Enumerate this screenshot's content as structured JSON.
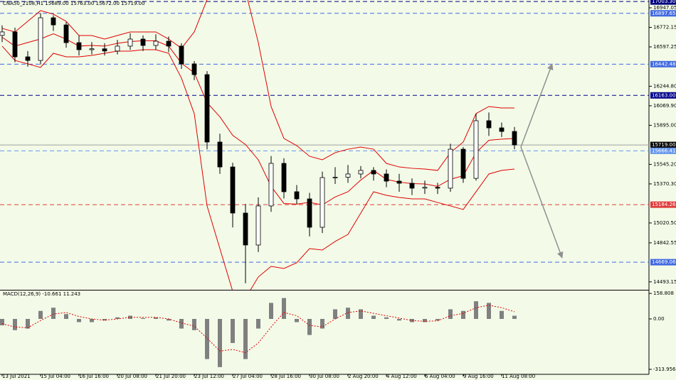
{
  "chart_data": {
    "type": "candlestick",
    "title": "CNA50_2108,H1 15689.00 15763.00 15672.00 15719.00",
    "categories": [
      "13 Jul 2021",
      null,
      null,
      "15 Jul 04:00",
      null,
      null,
      "16 Jul 16:00",
      null,
      null,
      "20 Jul 08:00",
      null,
      null,
      "21 Jul 20:00",
      null,
      null,
      "23 Jul 12:00",
      null,
      null,
      "27 Jul 04:00",
      null,
      null,
      "28 Jul 16:00",
      null,
      null,
      "30 Jul 08:00",
      null,
      null,
      "2 Aug 20:00",
      null,
      null,
      "4 Aug 12:00",
      null,
      null,
      "6 Aug 04:00",
      null,
      null,
      "9 Aug 16:00",
      null,
      null,
      "11 Aug 08:00",
      null
    ],
    "open": [
      16700,
      16731,
      16508,
      16476,
      16858,
      16794,
      16635,
      16572,
      16580,
      16560,
      16604,
      16667,
      16610,
      16648,
      16604,
      16445,
      16349,
      15745,
      15522,
      15109,
      14823,
      15173,
      15554,
      15300,
      15236,
      14982,
      15427,
      15430,
      15459,
      15491,
      15459,
      15395,
      15376,
      15332,
      15340,
      15332,
      15681,
      15420,
      15936,
      15872,
      15840
    ],
    "high": [
      16790,
      16770,
      16560,
      16900,
      16880,
      16820,
      16700,
      16640,
      16630,
      16660,
      16720,
      16700,
      16710,
      16690,
      16630,
      16470,
      16380,
      15820,
      15560,
      15190,
      15250,
      15620,
      15600,
      15360,
      15290,
      15480,
      15520,
      15540,
      15530,
      15520,
      15500,
      15460,
      15420,
      15400,
      15380,
      15730,
      15700,
      16000,
      16010,
      15920,
      15880
    ],
    "low": [
      16640,
      16460,
      16420,
      16440,
      16740,
      16590,
      16520,
      16530,
      16520,
      16530,
      16570,
      16560,
      16570,
      16550,
      16400,
      16300,
      15680,
      15460,
      14980,
      14480,
      14760,
      15120,
      15240,
      15190,
      14900,
      14930,
      15370,
      15380,
      15420,
      15400,
      15340,
      15300,
      15270,
      15280,
      15280,
      15300,
      15380,
      15400,
      15800,
      15790,
      15680
    ],
    "close": [
      16731,
      16508,
      16476,
      16858,
      16794,
      16635,
      16572,
      16580,
      16560,
      16604,
      16667,
      16610,
      16648,
      16604,
      16445,
      16349,
      15745,
      15522,
      15109,
      14823,
      15173,
      15554,
      15300,
      15236,
      14982,
      15427,
      15430,
      15459,
      15491,
      15459,
      15395,
      15376,
      15332,
      15340,
      15332,
      15681,
      15420,
      15936,
      15872,
      15840,
      15719
    ],
    "bands": {
      "color": "#e00000",
      "upper": [
        16763,
        16731,
        16826,
        16922,
        16890,
        16826,
        16699,
        16699,
        16667,
        16699,
        16731,
        16731,
        16731,
        16667,
        16585,
        16731,
        17020,
        17150,
        17200,
        17100,
        16635,
        16063,
        15777,
        15713,
        15618,
        15586,
        15650,
        15681,
        15700,
        15681,
        15554,
        15522,
        15510,
        15503,
        15491,
        15650,
        15745,
        16000,
        16063,
        16050,
        16050
      ],
      "middle": [
        16684,
        16604,
        16636,
        16668,
        16715,
        16667,
        16604,
        16610,
        16604,
        16629,
        16645,
        16652,
        16652,
        16604,
        16451,
        16365,
        16097,
        15971,
        15805,
        15723,
        15586,
        15348,
        15195,
        15189,
        15205,
        15182,
        15253,
        15300,
        15405,
        15491,
        15411,
        15386,
        15373,
        15370,
        15348,
        15412,
        15443,
        15650,
        15761,
        15771,
        15777
      ],
      "lower": [
        16604,
        16476,
        16445,
        16413,
        16540,
        16508,
        16508,
        16521,
        16540,
        16559,
        16559,
        16572,
        16572,
        16540,
        16317,
        15999,
        15173,
        14791,
        14409,
        14346,
        14537,
        14632,
        14613,
        14664,
        14791,
        14778,
        14855,
        14918,
        15109,
        15300,
        15268,
        15249,
        15236,
        15236,
        15204,
        15173,
        15141,
        15300,
        15459,
        15491,
        15503
      ]
    },
    "levels": [
      {
        "value": 17003.3,
        "label": "17003.30",
        "color": "#000080"
      },
      {
        "value": 16897.65,
        "label": "16897.65",
        "color": "#4169e1"
      },
      {
        "value": 16442.48,
        "label": "16442.48",
        "color": "#4169e1"
      },
      {
        "value": 16163,
        "label": "16163.00",
        "color": "#00008b"
      },
      {
        "value": 15719,
        "label": "15719.00",
        "color": "#000000"
      },
      {
        "value": 15666.41,
        "label": "15666.41",
        "color": "#6495ed"
      },
      {
        "value": 15184.26,
        "label": "15184.26",
        "color": "#e03c3c"
      },
      {
        "value": 14669.06,
        "label": "14669.06",
        "color": "#4169e1"
      }
    ],
    "ylim": [
      14422,
      17017
    ],
    "yticks": [
      16947.05,
      16772.15,
      16597.25,
      {
        "value": 16244.8,
        "label": "16244.80"
      },
      {
        "value": 16069.9,
        "label": "16069.90"
      },
      {
        "value": 15895,
        "label": "15895.00"
      },
      {
        "value": 15545.2,
        "label": "15545.20"
      },
      {
        "value": 15370.3,
        "label": "15370.30"
      },
      {
        "value": 15020.5,
        "label": "15020.50"
      },
      14842.55,
      14493.15
    ],
    "macd": {
      "title": "MACD(12,26,9) -10.661 11.243",
      "color": "#808080",
      "signal_color": "#e00000",
      "values": [
        -40,
        -70,
        -60,
        50,
        70,
        30,
        -20,
        -20,
        -10,
        10,
        20,
        5,
        10,
        -10,
        -60,
        -70,
        -250,
        -300,
        -150,
        -250,
        -60,
        100,
        130,
        -20,
        -100,
        -60,
        60,
        70,
        60,
        20,
        10,
        -10,
        -20,
        -20,
        -10,
        60,
        50,
        110,
        100,
        50,
        20
      ],
      "signal": [
        -30,
        -50,
        -55,
        -10,
        30,
        40,
        15,
        0,
        -8,
        0,
        10,
        10,
        10,
        0,
        -25,
        -45,
        -120,
        -200,
        -190,
        -210,
        -150,
        -50,
        40,
        20,
        -40,
        -50,
        0,
        40,
        50,
        35,
        20,
        5,
        -10,
        -15,
        -12,
        20,
        35,
        70,
        85,
        70,
        45
      ],
      "ylim": [
        -345,
        177
      ],
      "yticks": [
        158.808,
        {
          "value": 0,
          "label": "0.00"
        },
        -313.956
      ]
    }
  }
}
